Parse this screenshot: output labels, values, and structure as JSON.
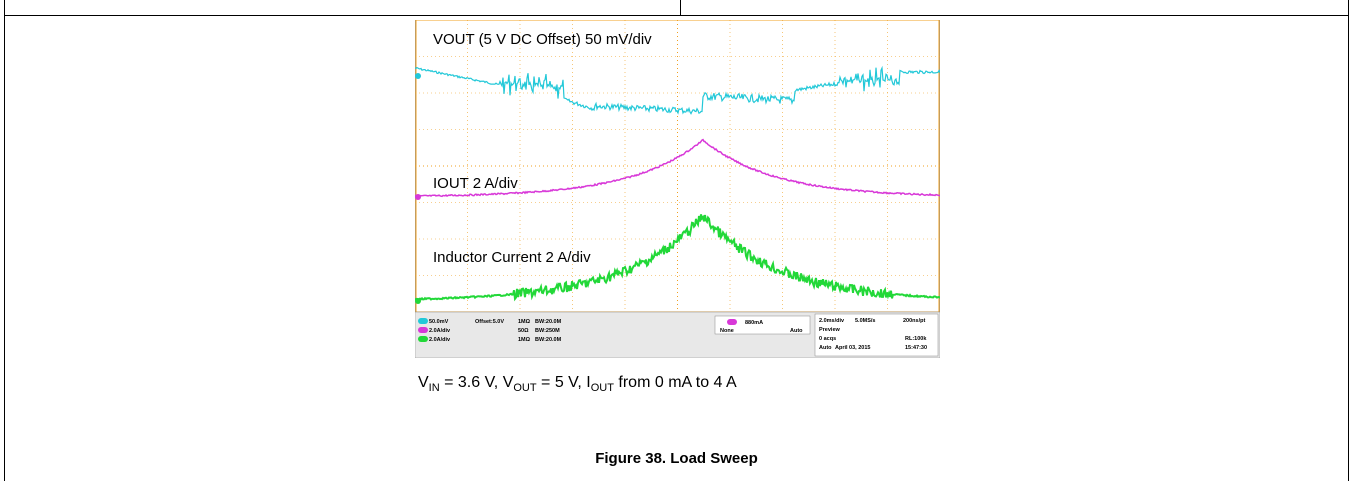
{
  "scope": {
    "traces": [
      "VOUT (5 V DC Offset) 50 mV/div",
      "IOUT 2 A/div",
      "Inductor Current 2 A/div"
    ],
    "status": {
      "channels": [
        [
          "50.0mV",
          "Offset:5.0V",
          "1MΩ",
          "BW:20.0M"
        ],
        [
          "2.0A/div",
          "50Ω",
          "BW:250M"
        ],
        [
          "2.0A/div",
          "1MΩ",
          "BW:20.0M"
        ]
      ],
      "trigger": [
        "880mA",
        "None",
        "Auto"
      ],
      "timebase": [
        [
          "2.0ms/div",
          "5.0MS/s",
          "200ns/pt"
        ],
        [
          "Preview"
        ],
        [
          "0 acqs",
          "RL:100k"
        ],
        [
          "Auto",
          "April 03, 2015",
          "15:47:30"
        ]
      ]
    }
  },
  "caption": {
    "parts": [
      {
        "text": "V"
      },
      {
        "sub": "IN"
      },
      {
        "text": " = 3.6 V, V"
      },
      {
        "sub": "OUT"
      },
      {
        "text": " = 5 V, I"
      },
      {
        "sub": "OUT"
      },
      {
        "text": " from 0 mA to 4 A"
      }
    ]
  },
  "figure_title": "Figure 38. Load Sweep"
}
